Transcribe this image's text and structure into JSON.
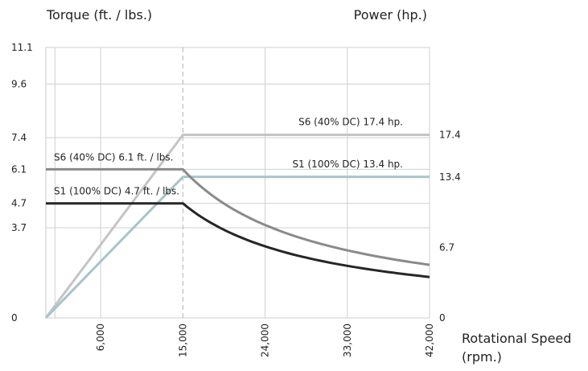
{
  "chart_data": {
    "type": "line",
    "left_axis": {
      "label": "Torque (ft. / lbs.)",
      "range": [
        0,
        11.1
      ],
      "ticks": [
        "11.1",
        "9.6",
        "7.4",
        "6.1",
        "4.7",
        "3.7",
        "0"
      ],
      "tick_values": [
        11.1,
        9.6,
        7.4,
        6.1,
        4.7,
        3.7,
        0
      ]
    },
    "right_axis": {
      "label": "Power (hp.)",
      "range": [
        0,
        25.7
      ],
      "ticks": [
        "17.4",
        "13.4",
        "6.7",
        "0"
      ],
      "tick_values": [
        17.4,
        13.4,
        6.7,
        0
      ]
    },
    "x_axis": {
      "label": "Rotational Speed (rpm.)",
      "label_line1": "Rotational Speed",
      "label_line2": "(rpm.)",
      "range": [
        0,
        42000
      ],
      "ticks": [
        "6,000",
        "15,000",
        "24,000",
        "33,000",
        "42,000"
      ],
      "tick_values": [
        6000,
        15000,
        24000,
        33000,
        42000
      ]
    },
    "grid": true,
    "corner_speed": 15000,
    "series": [
      {
        "name": "S6 (40% DC) 17.4 hp.",
        "axis": "right",
        "color": "#c4c4c4",
        "points": [
          [
            0,
            0
          ],
          [
            15000,
            17.4
          ],
          [
            42000,
            17.4
          ]
        ]
      },
      {
        "name": "S1 (100% DC) 13.4 hp.",
        "axis": "right",
        "color": "#a7c4cb",
        "points": [
          [
            0,
            0
          ],
          [
            15000,
            13.4
          ],
          [
            42000,
            13.4
          ]
        ]
      },
      {
        "name": "S6 (40% DC) 6.1 ft. / lbs.",
        "axis": "left",
        "color": "#8a8a8a",
        "flat_value": 6.1,
        "constant_power_from": 15000,
        "x_end": 42000
      },
      {
        "name": "S1 (100% DC) 4.7 ft. / lbs.",
        "axis": "left",
        "color": "#262626",
        "flat_value": 4.7,
        "constant_power_from": 15000,
        "x_end": 42000
      }
    ]
  }
}
